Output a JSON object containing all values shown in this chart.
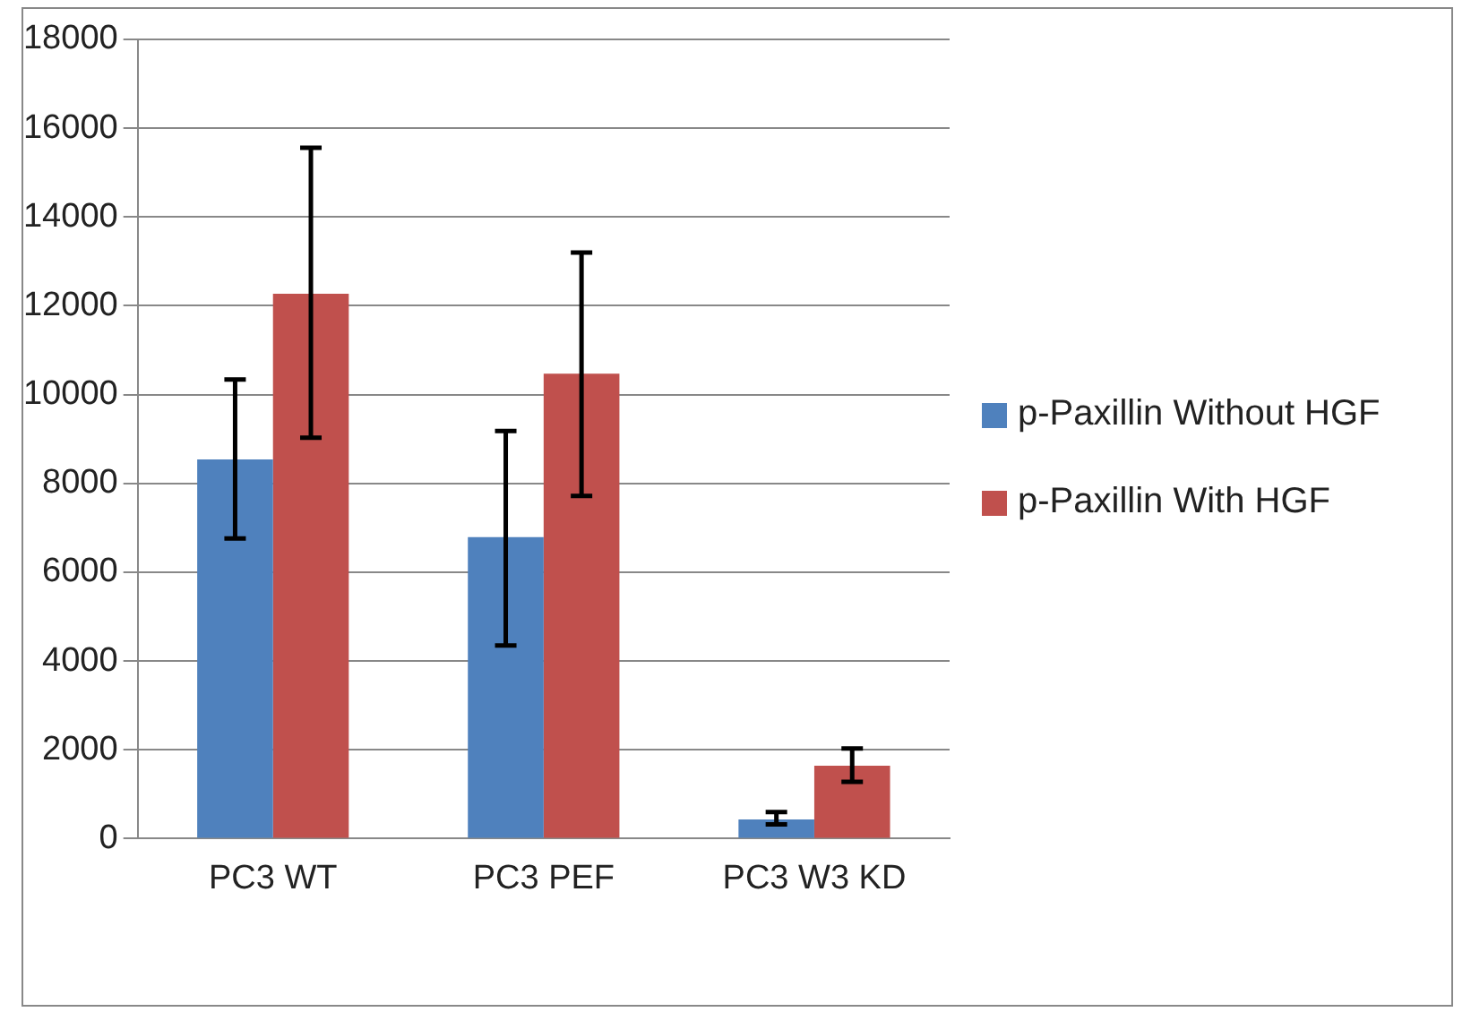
{
  "chart_data": {
    "type": "bar",
    "categories": [
      "PC3 WT",
      "PC3 PEF",
      "PC3 W3 KD"
    ],
    "series": [
      {
        "name": "p-Paxillin Without HGF",
        "color": "#4f81bd",
        "values": [
          8540,
          6790,
          430
        ],
        "errors": [
          [
            6760,
            10340
          ],
          [
            4350,
            9180
          ],
          [
            320,
            600
          ]
        ]
      },
      {
        "name": "p-Paxillin With HGF",
        "color": "#c0504d",
        "values": [
          12270,
          10470,
          1640
        ],
        "errors": [
          [
            9030,
            15560
          ],
          [
            7720,
            13200
          ],
          [
            1280,
            2030
          ]
        ]
      }
    ],
    "ylim": [
      0,
      18000
    ],
    "yticks": [
      0,
      2000,
      4000,
      6000,
      8000,
      10000,
      12000,
      14000,
      16000,
      18000
    ],
    "grid": "y",
    "legend": "right"
  }
}
